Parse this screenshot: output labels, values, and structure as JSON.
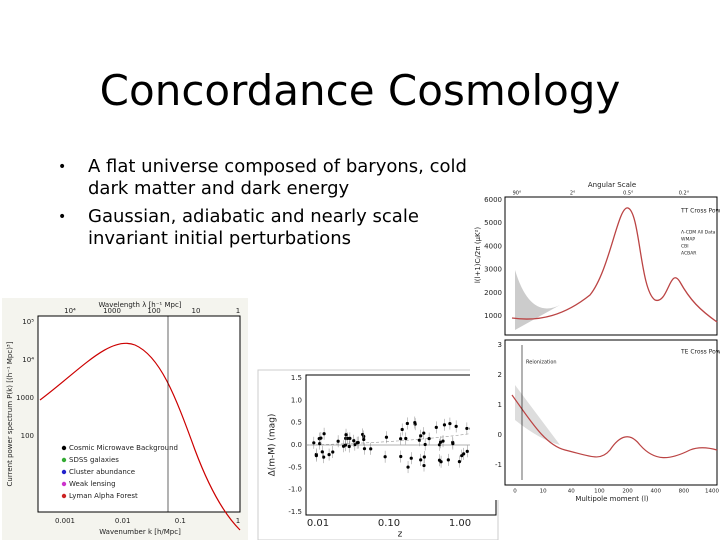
{
  "title": "Concordance Cosmology",
  "bullets": [
    "A flat universe composed of baryons, cold dark matter and dark energy",
    "Gaussian, adiabatic and nearly scale invariant initial perturbations"
  ],
  "figures": [
    {
      "top_label": "Wavelength λ [h⁻¹ Mpc]",
      "top_ticks": [
        "10⁴",
        "1000",
        "100",
        "10",
        "1"
      ],
      "y_label": "Current power spectrum P(k) [(h⁻¹ Mpc)³]",
      "y_ticks": [
        "10⁵",
        "10⁴",
        "1000",
        "100"
      ],
      "x_label": "Wavenumber k [h/Mpc]",
      "x_ticks": [
        "0.001",
        "0.01",
        "0.1",
        "1"
      ],
      "legend": [
        "Cosmic Microwave Background",
        "SDSS galaxies",
        "Cluster abundance",
        "Weak lensing",
        "Lyman Alpha Forest"
      ]
    },
    {
      "y_label": "Δ(m-M) (mag)",
      "y_ticks": [
        "1.5",
        "1.0",
        "0.5",
        "0.0",
        "-0.5",
        "-1.0",
        "-1.5"
      ],
      "x_label": "z",
      "x_ticks": [
        "0.01",
        "0.10",
        "1.00"
      ]
    },
    {
      "top_label": "Angular Scale",
      "top_ticks": [
        "90°",
        "2°",
        "0.5°",
        "0.2°"
      ],
      "y_label": "l(l+1)Cₗ/2π (μK²)",
      "y_ticks": [
        "6000",
        "5000",
        "4000",
        "3000",
        "2000",
        "1000"
      ],
      "legend_title": "TT Cross Power Spectrum",
      "legend": [
        "Λ-CDM All Data",
        "WMAP",
        "CBI",
        "ACBAR"
      ],
      "lower_title": "TE Cross Power Spectrum",
      "annotation": "Reionization",
      "lower_y_ticks": [
        "3",
        "2",
        "1",
        "0",
        "-1"
      ],
      "x_label": "Multipole moment (l)",
      "x_ticks": [
        "0",
        "10",
        "40",
        "100",
        "200",
        "400",
        "800",
        "1400"
      ]
    }
  ]
}
